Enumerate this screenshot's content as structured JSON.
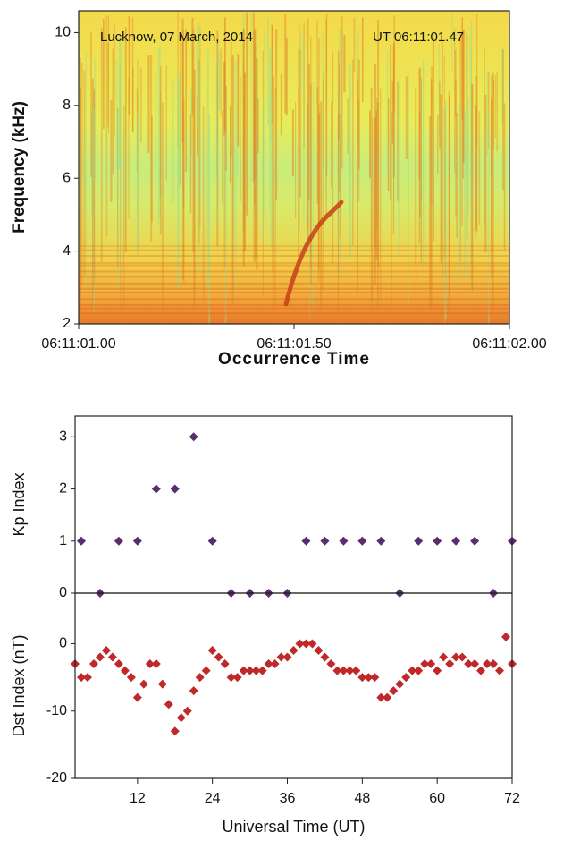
{
  "chart_data": [
    {
      "type": "spectrogram",
      "annotations": [
        "Lucknow, 07 March, 2014",
        "UT 06:11:01.47"
      ],
      "xlabel": "Occurrence Time",
      "ylabel": "Frequency (kHz)",
      "xlim": [
        1.0,
        2.0
      ],
      "xticks": [
        {
          "value": 1.0,
          "label": "06:11:01.00"
        },
        {
          "value": 1.5,
          "label": "06:11:01.50"
        },
        {
          "value": 2.0,
          "label": "06:11:02.00"
        }
      ],
      "ylim": [
        2,
        10.6
      ],
      "yticks": [
        2,
        4,
        6,
        8,
        10
      ]
    },
    {
      "type": "scatter",
      "ylabel": "Kp Index",
      "color": "#5b2c6f",
      "xlim": [
        2,
        72
      ],
      "ylim": [
        0,
        3.4
      ],
      "yticks": [
        0,
        1,
        2,
        3
      ],
      "x": [
        3,
        6,
        9,
        12,
        15,
        18,
        21,
        24,
        27,
        30,
        33,
        36,
        39,
        42,
        45,
        48,
        51,
        54,
        57,
        60,
        63,
        66,
        69,
        72
      ],
      "values": [
        1,
        0,
        1,
        1,
        2,
        2,
        3,
        1,
        0,
        0,
        0,
        0,
        1,
        1,
        1,
        1,
        1,
        0,
        1,
        1,
        1,
        1,
        0,
        1
      ]
    },
    {
      "type": "scatter",
      "ylabel": "Dst Index (nT)",
      "xlabel": "Universal Time (UT)",
      "color": "#c0282a",
      "xlim": [
        2,
        72
      ],
      "xticks": [
        12,
        24,
        36,
        48,
        60,
        72
      ],
      "ylim": [
        -20,
        7.5
      ],
      "yticks": [
        -20,
        -10,
        0
      ],
      "x": [
        2,
        3,
        4,
        5,
        6,
        7,
        8,
        9,
        10,
        11,
        12,
        13,
        14,
        15,
        16,
        17,
        18,
        19,
        20,
        21,
        22,
        23,
        24,
        25,
        26,
        27,
        28,
        29,
        30,
        31,
        32,
        33,
        34,
        35,
        36,
        37,
        38,
        39,
        40,
        41,
        42,
        43,
        44,
        45,
        46,
        47,
        48,
        49,
        50,
        51,
        52,
        53,
        54,
        55,
        56,
        57,
        58,
        59,
        60,
        61,
        62,
        63,
        64,
        65,
        66,
        67,
        68,
        69,
        70,
        71,
        72
      ],
      "values": [
        -3,
        -5,
        -5,
        -3,
        -2,
        -1,
        -2,
        -3,
        -4,
        -5,
        -8,
        -6,
        -3,
        -3,
        -6,
        -9,
        -13,
        -11,
        -10,
        -7,
        -5,
        -4,
        -1,
        -2,
        -3,
        -5,
        -5,
        -4,
        -4,
        -4,
        -4,
        -3,
        -3,
        -2,
        -2,
        -1,
        0,
        0,
        0,
        -1,
        -2,
        -3,
        -4,
        -4,
        -4,
        -4,
        -5,
        -5,
        -5,
        -8,
        -8,
        -7,
        -6,
        -5,
        -4,
        -4,
        -3,
        -3,
        -4,
        -2,
        -3,
        -2,
        -2,
        -3,
        -3,
        -4,
        -3,
        -3,
        -4,
        1,
        -3
      ]
    }
  ]
}
